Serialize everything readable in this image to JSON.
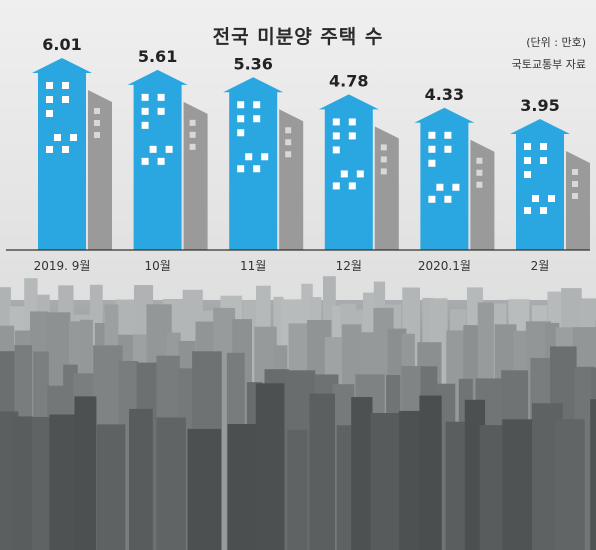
{
  "header": {
    "title": "전국 미분양 주택 수",
    "unit": "(단위 : 만호)",
    "source": "국토교통부 자료"
  },
  "colors": {
    "building": "#2aa7e0",
    "shadow": "#9a9a9a",
    "window": "#ffffff",
    "axis": "#333333"
  },
  "chart_data": {
    "type": "bar",
    "title": "전국 미분양 주택 수",
    "xlabel": "",
    "ylabel": "",
    "unit": "(단위 : 만호)",
    "categories": [
      "2019. 9월",
      "10월",
      "11월",
      "12월",
      "2020.1월",
      "2월"
    ],
    "values": [
      6.01,
      5.61,
      5.36,
      4.78,
      4.33,
      3.95
    ],
    "value_labels": [
      "6.01",
      "5.61",
      "5.36",
      "4.78",
      "4.33",
      "3.95"
    ],
    "ylim": [
      0,
      6.3
    ],
    "grid": false,
    "legend": "none"
  }
}
